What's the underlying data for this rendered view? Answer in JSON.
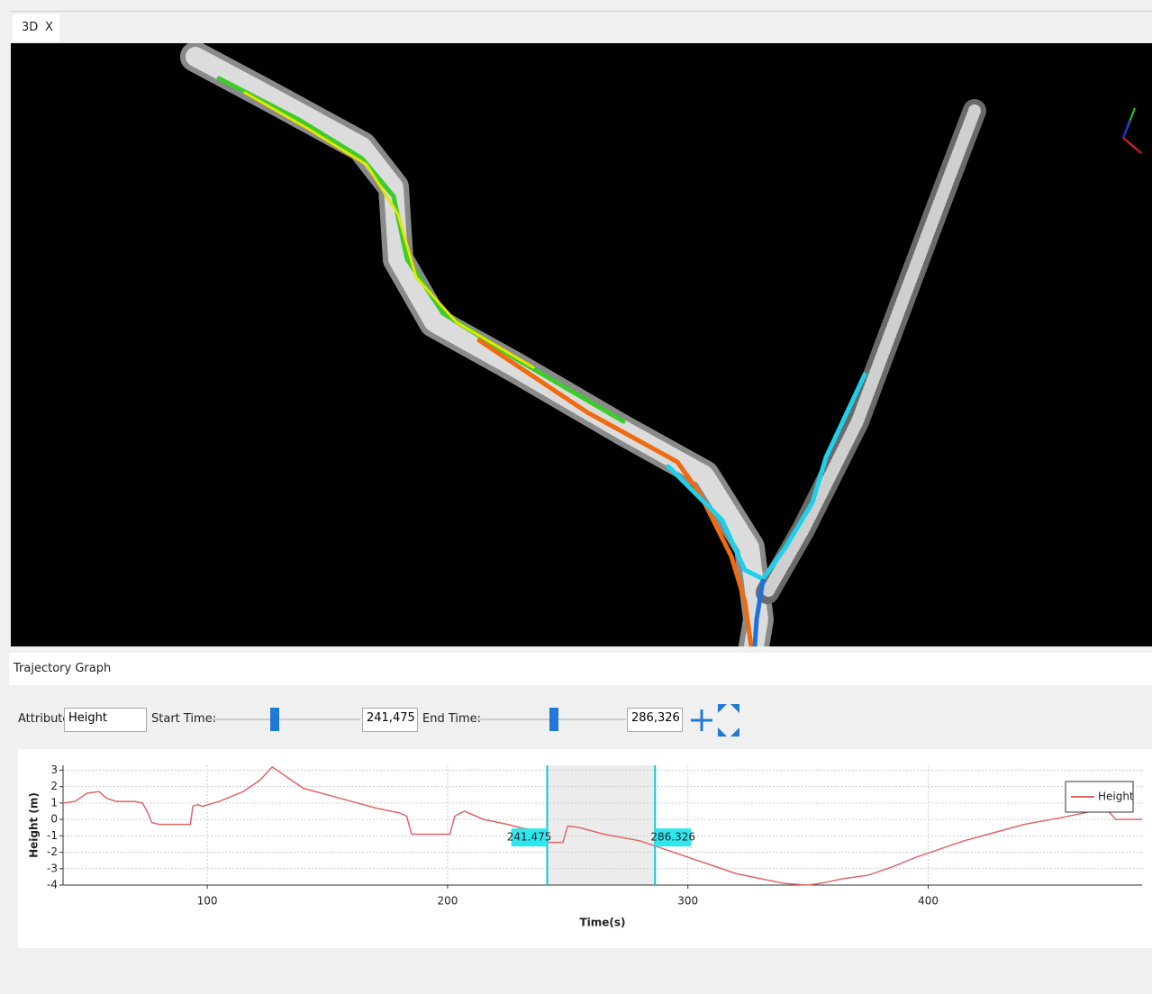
{
  "tab": {
    "label": "3D",
    "close": "X"
  },
  "panel_title": "Trajectory Graph",
  "controls": {
    "attribute_label": "Attribute:",
    "attribute_value": "Height",
    "start_label": "Start Time:",
    "start_value": "241,475",
    "end_label": "End Time:",
    "end_value": "286,326"
  },
  "chart_data": {
    "type": "line",
    "x_label": "Time(s)",
    "y_label": "Height (m)",
    "x": [
      40,
      45,
      50,
      55,
      58,
      62,
      70,
      73,
      75,
      77,
      80,
      90,
      93,
      94,
      96,
      98,
      105,
      115,
      122,
      127,
      130,
      140,
      150,
      160,
      170,
      180,
      183,
      185,
      195,
      201,
      203,
      207,
      215,
      225,
      230,
      234,
      240,
      248,
      250,
      255,
      265,
      280,
      290,
      300,
      310,
      320,
      330,
      340,
      350,
      355,
      365,
      375,
      385,
      395,
      405,
      415,
      425,
      440,
      455,
      465,
      470,
      475,
      478,
      489
    ],
    "series": [
      {
        "name": "Height",
        "color": "#e06666",
        "values": [
          1.0,
          1.1,
          1.6,
          1.7,
          1.3,
          1.1,
          1.1,
          1.0,
          0.5,
          -0.2,
          -0.3,
          -0.3,
          -0.3,
          0.8,
          0.9,
          0.8,
          1.1,
          1.7,
          2.4,
          3.2,
          2.9,
          1.9,
          1.5,
          1.1,
          0.7,
          0.4,
          0.2,
          -0.9,
          -0.9,
          -0.9,
          0.2,
          0.5,
          0.0,
          -0.3,
          -0.5,
          -0.6,
          -1.4,
          -1.4,
          -0.4,
          -0.5,
          -0.9,
          -1.3,
          -1.8,
          -2.3,
          -2.8,
          -3.3,
          -3.6,
          -3.9,
          -4.0,
          -3.9,
          -3.6,
          -3.4,
          -2.9,
          -2.3,
          -1.8,
          -1.3,
          -0.9,
          -0.3,
          0.1,
          0.4,
          0.6,
          0.5,
          0.0,
          0.0
        ]
      }
    ],
    "xlim": [
      40,
      489
    ],
    "ylim": [
      -4,
      3.3
    ],
    "xticks": [
      100,
      200,
      300,
      400
    ],
    "yticks": [
      3,
      2,
      1,
      0,
      -1,
      -2,
      -3,
      -4
    ],
    "selection": [
      241.475,
      286.326
    ],
    "grid": true,
    "legend": "upper right"
  }
}
